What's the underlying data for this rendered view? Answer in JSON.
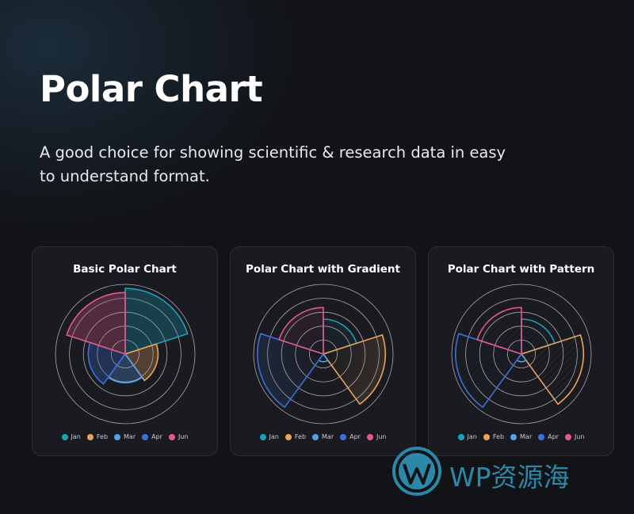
{
  "header": {
    "title": "Polar Chart",
    "subtitle": "A good choice for showing scientific & research data in easy to understand format."
  },
  "colors": {
    "Jan": "#1aa3b8",
    "Feb": "#e9a35b",
    "Mar": "#56a1e8",
    "Apr": "#3a6fdc",
    "Jun": "#e2588f",
    "grid": "#bfc3c8"
  },
  "chart_data": [
    {
      "type": "polar-area",
      "title": "Basic Polar Chart",
      "style": "filled",
      "categories": [
        "Jan",
        "Feb",
        "Mar",
        "Apr",
        "Jun"
      ],
      "values": [
        80,
        40,
        35,
        45,
        75
      ],
      "rmax": 85,
      "rings": 5
    },
    {
      "type": "polar-area",
      "title": "Polar Chart with Gradient",
      "style": "gradient",
      "categories": [
        "Jan",
        "Feb",
        "Mar",
        "Apr",
        "Jun"
      ],
      "values": [
        45,
        80,
        10,
        85,
        60
      ],
      "rmax": 90,
      "rings": 5
    },
    {
      "type": "polar-area",
      "title": "Polar Chart with Pattern",
      "style": "pattern",
      "categories": [
        "Jan",
        "Feb",
        "Mar",
        "Apr",
        "Jun"
      ],
      "values": [
        45,
        80,
        10,
        85,
        60
      ],
      "rmax": 90,
      "rings": 5
    }
  ],
  "watermark": {
    "text": "WP资源海"
  }
}
